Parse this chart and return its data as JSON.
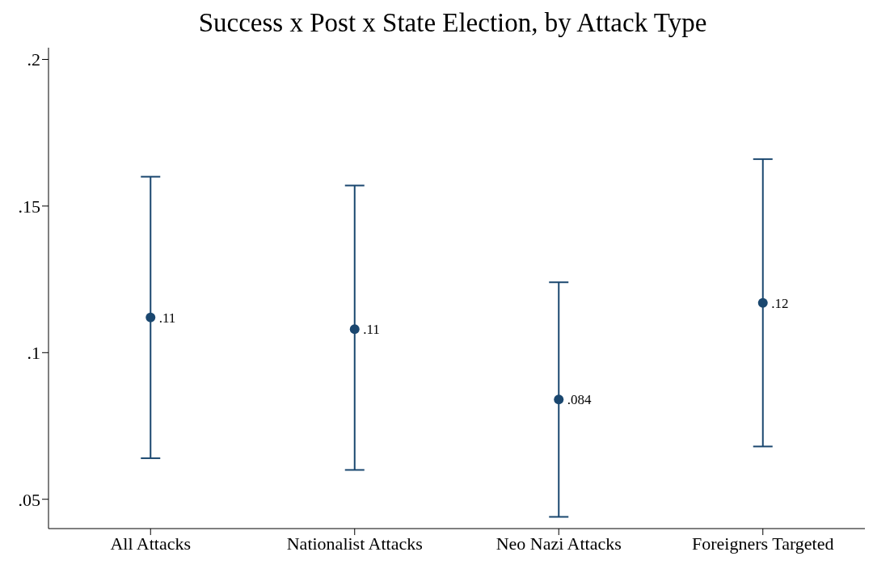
{
  "chart_data": {
    "type": "scatter",
    "title": "Success x Post x State Election, by Attack Type",
    "categories": [
      "All Attacks",
      "Nationalist Attacks",
      "Neo Nazi Attacks",
      "Foreigners Targeted"
    ],
    "values": [
      0.112,
      0.108,
      0.084,
      0.117
    ],
    "errors": [
      [
        0.064,
        0.16
      ],
      [
        0.06,
        0.157
      ],
      [
        0.044,
        0.124
      ],
      [
        0.068,
        0.166
      ]
    ],
    "value_labels": [
      ".11",
      ".11",
      ".084",
      ".12"
    ],
    "color": "#1a476f",
    "marker": "circle",
    "grid": false,
    "legend": false,
    "ylim": [
      0.04,
      0.204
    ],
    "yticks": [
      {
        "value": 0.05,
        "label": ".05"
      },
      {
        "value": 0.1,
        "label": ".1"
      },
      {
        "value": 0.15,
        "label": ".15"
      },
      {
        "value": 0.2,
        "label": ".2"
      }
    ]
  }
}
